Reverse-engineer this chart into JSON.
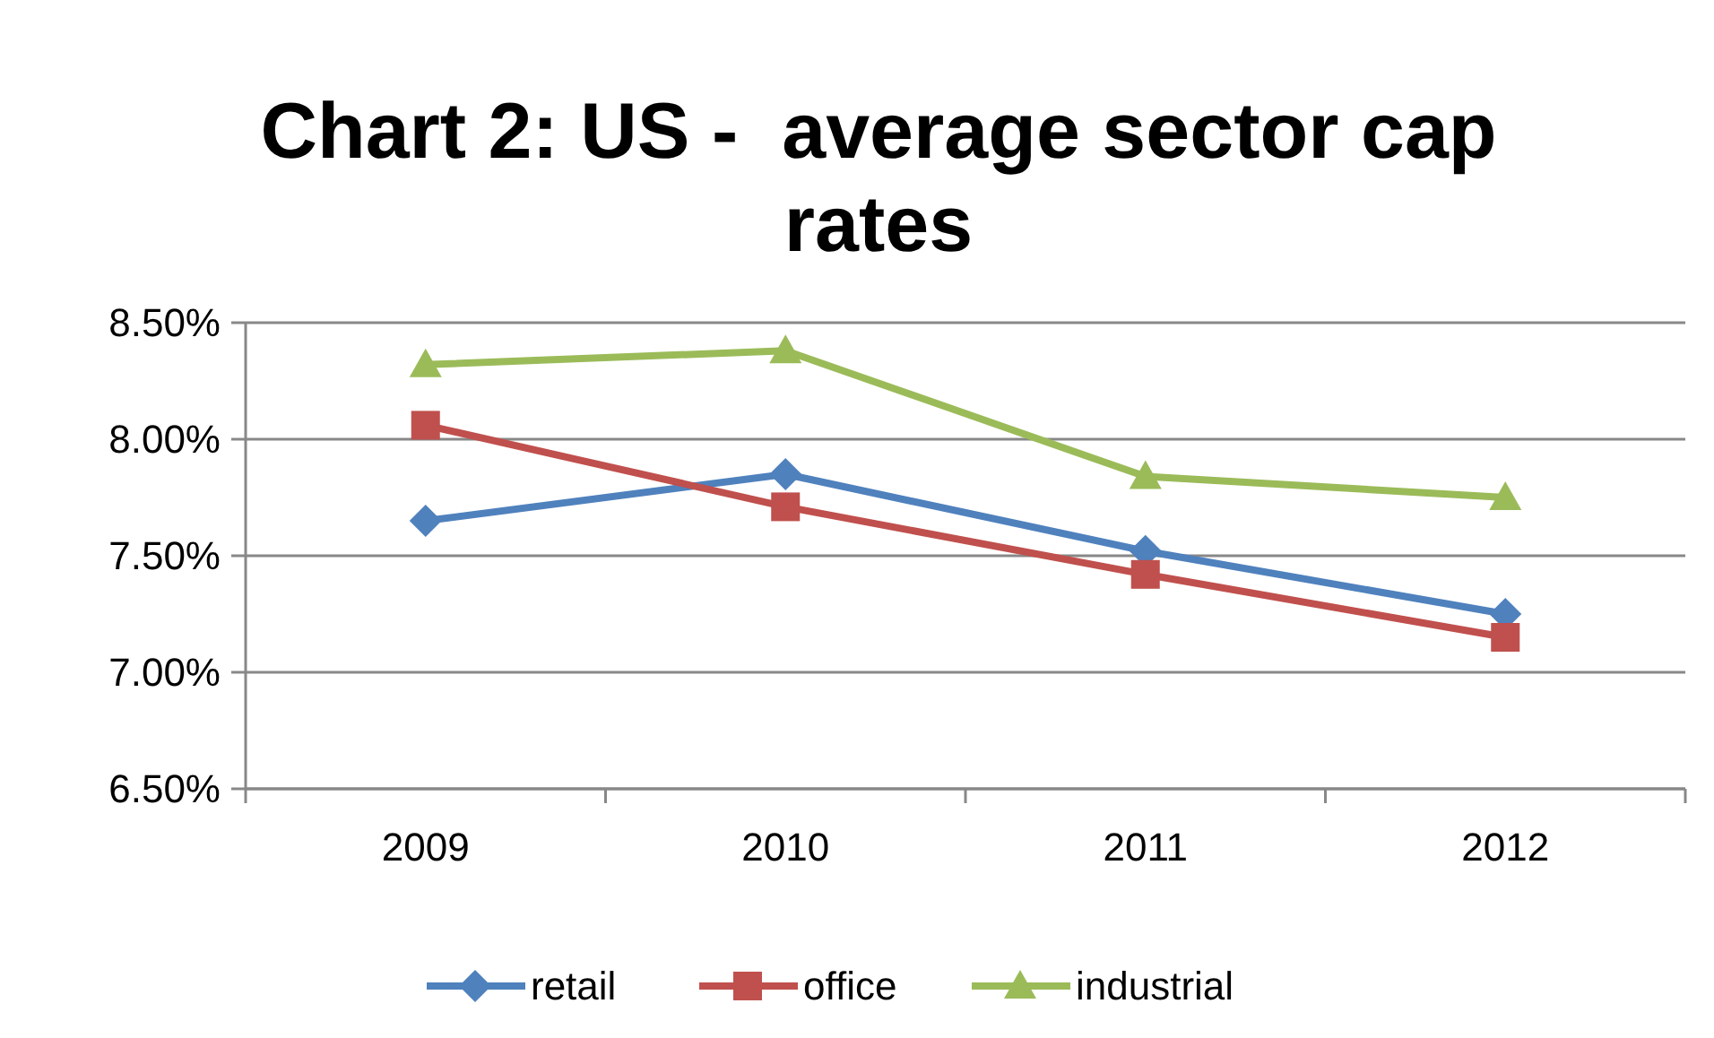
{
  "chart_data": {
    "type": "line",
    "title": "Chart 2: US -  average sector cap rates",
    "categories": [
      "2009",
      "2010",
      "2011",
      "2012"
    ],
    "series": [
      {
        "name": "retail",
        "color": "#4f81bd",
        "marker": "diamond",
        "values": [
          7.65,
          7.85,
          7.52,
          7.25
        ]
      },
      {
        "name": "office",
        "color": "#c0504d",
        "marker": "square",
        "values": [
          8.06,
          7.71,
          7.42,
          7.15
        ]
      },
      {
        "name": "industrial",
        "color": "#9bbb59",
        "marker": "triangle",
        "values": [
          8.32,
          8.38,
          7.84,
          7.75
        ]
      }
    ],
    "ylim": [
      6.5,
      8.5
    ],
    "yticks": [
      {
        "value": 6.5,
        "label": "6.50%"
      },
      {
        "value": 7,
        "label": "7.00%"
      },
      {
        "value": 7.5,
        "label": "7.50%"
      },
      {
        "value": 8,
        "label": "8.00%"
      },
      {
        "value": 8.5,
        "label": "8.50%"
      }
    ],
    "grid": "y",
    "legend": "bottom",
    "line_style": "solid"
  }
}
